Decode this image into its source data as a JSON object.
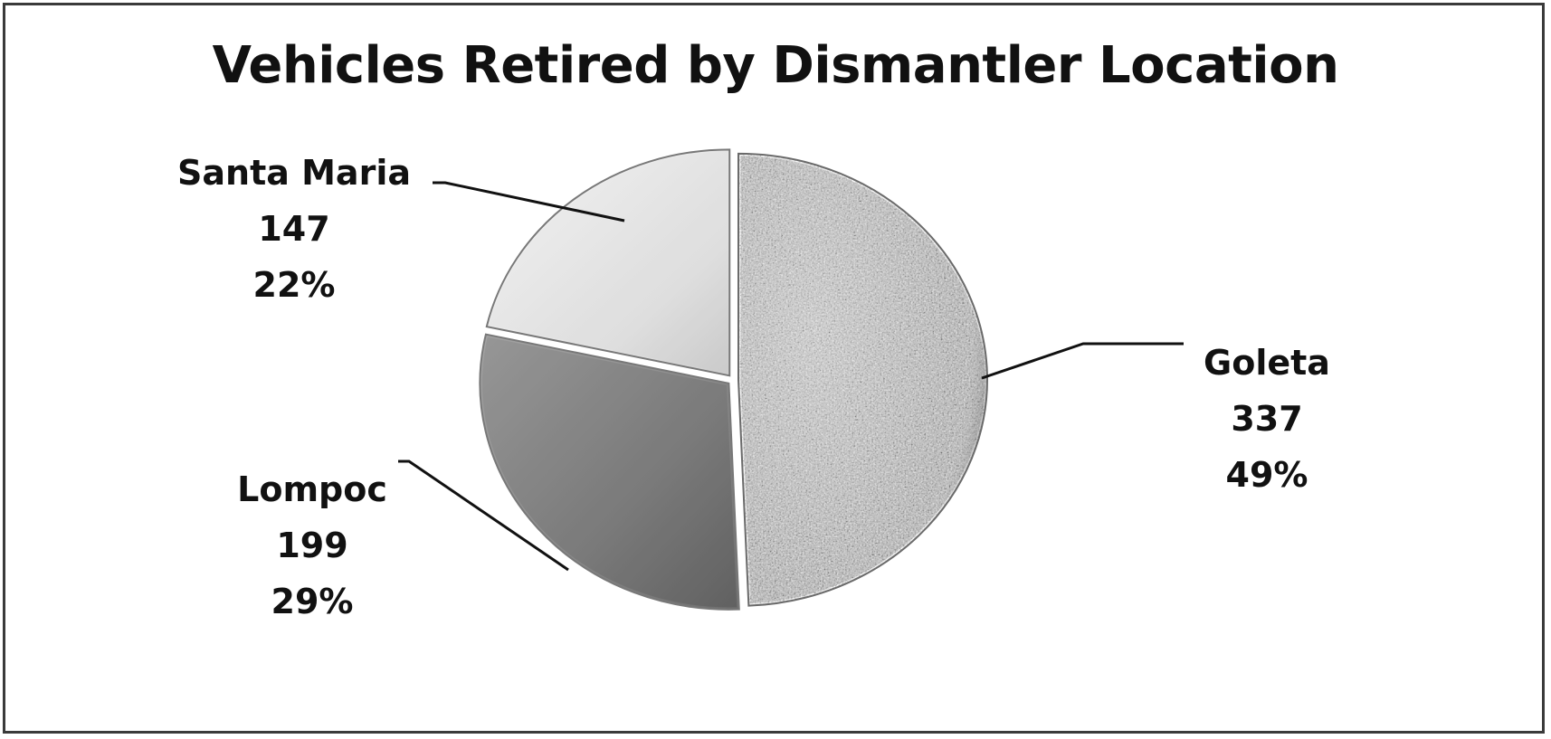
{
  "chart_data": {
    "type": "pie",
    "title": "Vehicles Retired by Dismantler Location",
    "slices": [
      {
        "name": "Goleta",
        "value": 337,
        "percent": "49%",
        "color": "#b9b9b9",
        "texture": "granite"
      },
      {
        "name": "Lompoc",
        "value": 199,
        "percent": "29%",
        "color": "#7c7c7c",
        "texture": "solid"
      },
      {
        "name": "Santa Maria",
        "value": 147,
        "percent": "22%",
        "color": "#e0e0e0",
        "texture": "solid"
      }
    ],
    "start_angle_deg": 0,
    "direction": "clockwise",
    "legend": "none",
    "labels": "outside-with-leader-lines"
  },
  "labels": {
    "goleta": {
      "name": "Goleta",
      "value": "337",
      "percent": "49%"
    },
    "lompoc": {
      "name": "Lompoc",
      "value": "199",
      "percent": "29%"
    },
    "santa_maria": {
      "name": "Santa Maria",
      "value": "147",
      "percent": "22%"
    }
  }
}
